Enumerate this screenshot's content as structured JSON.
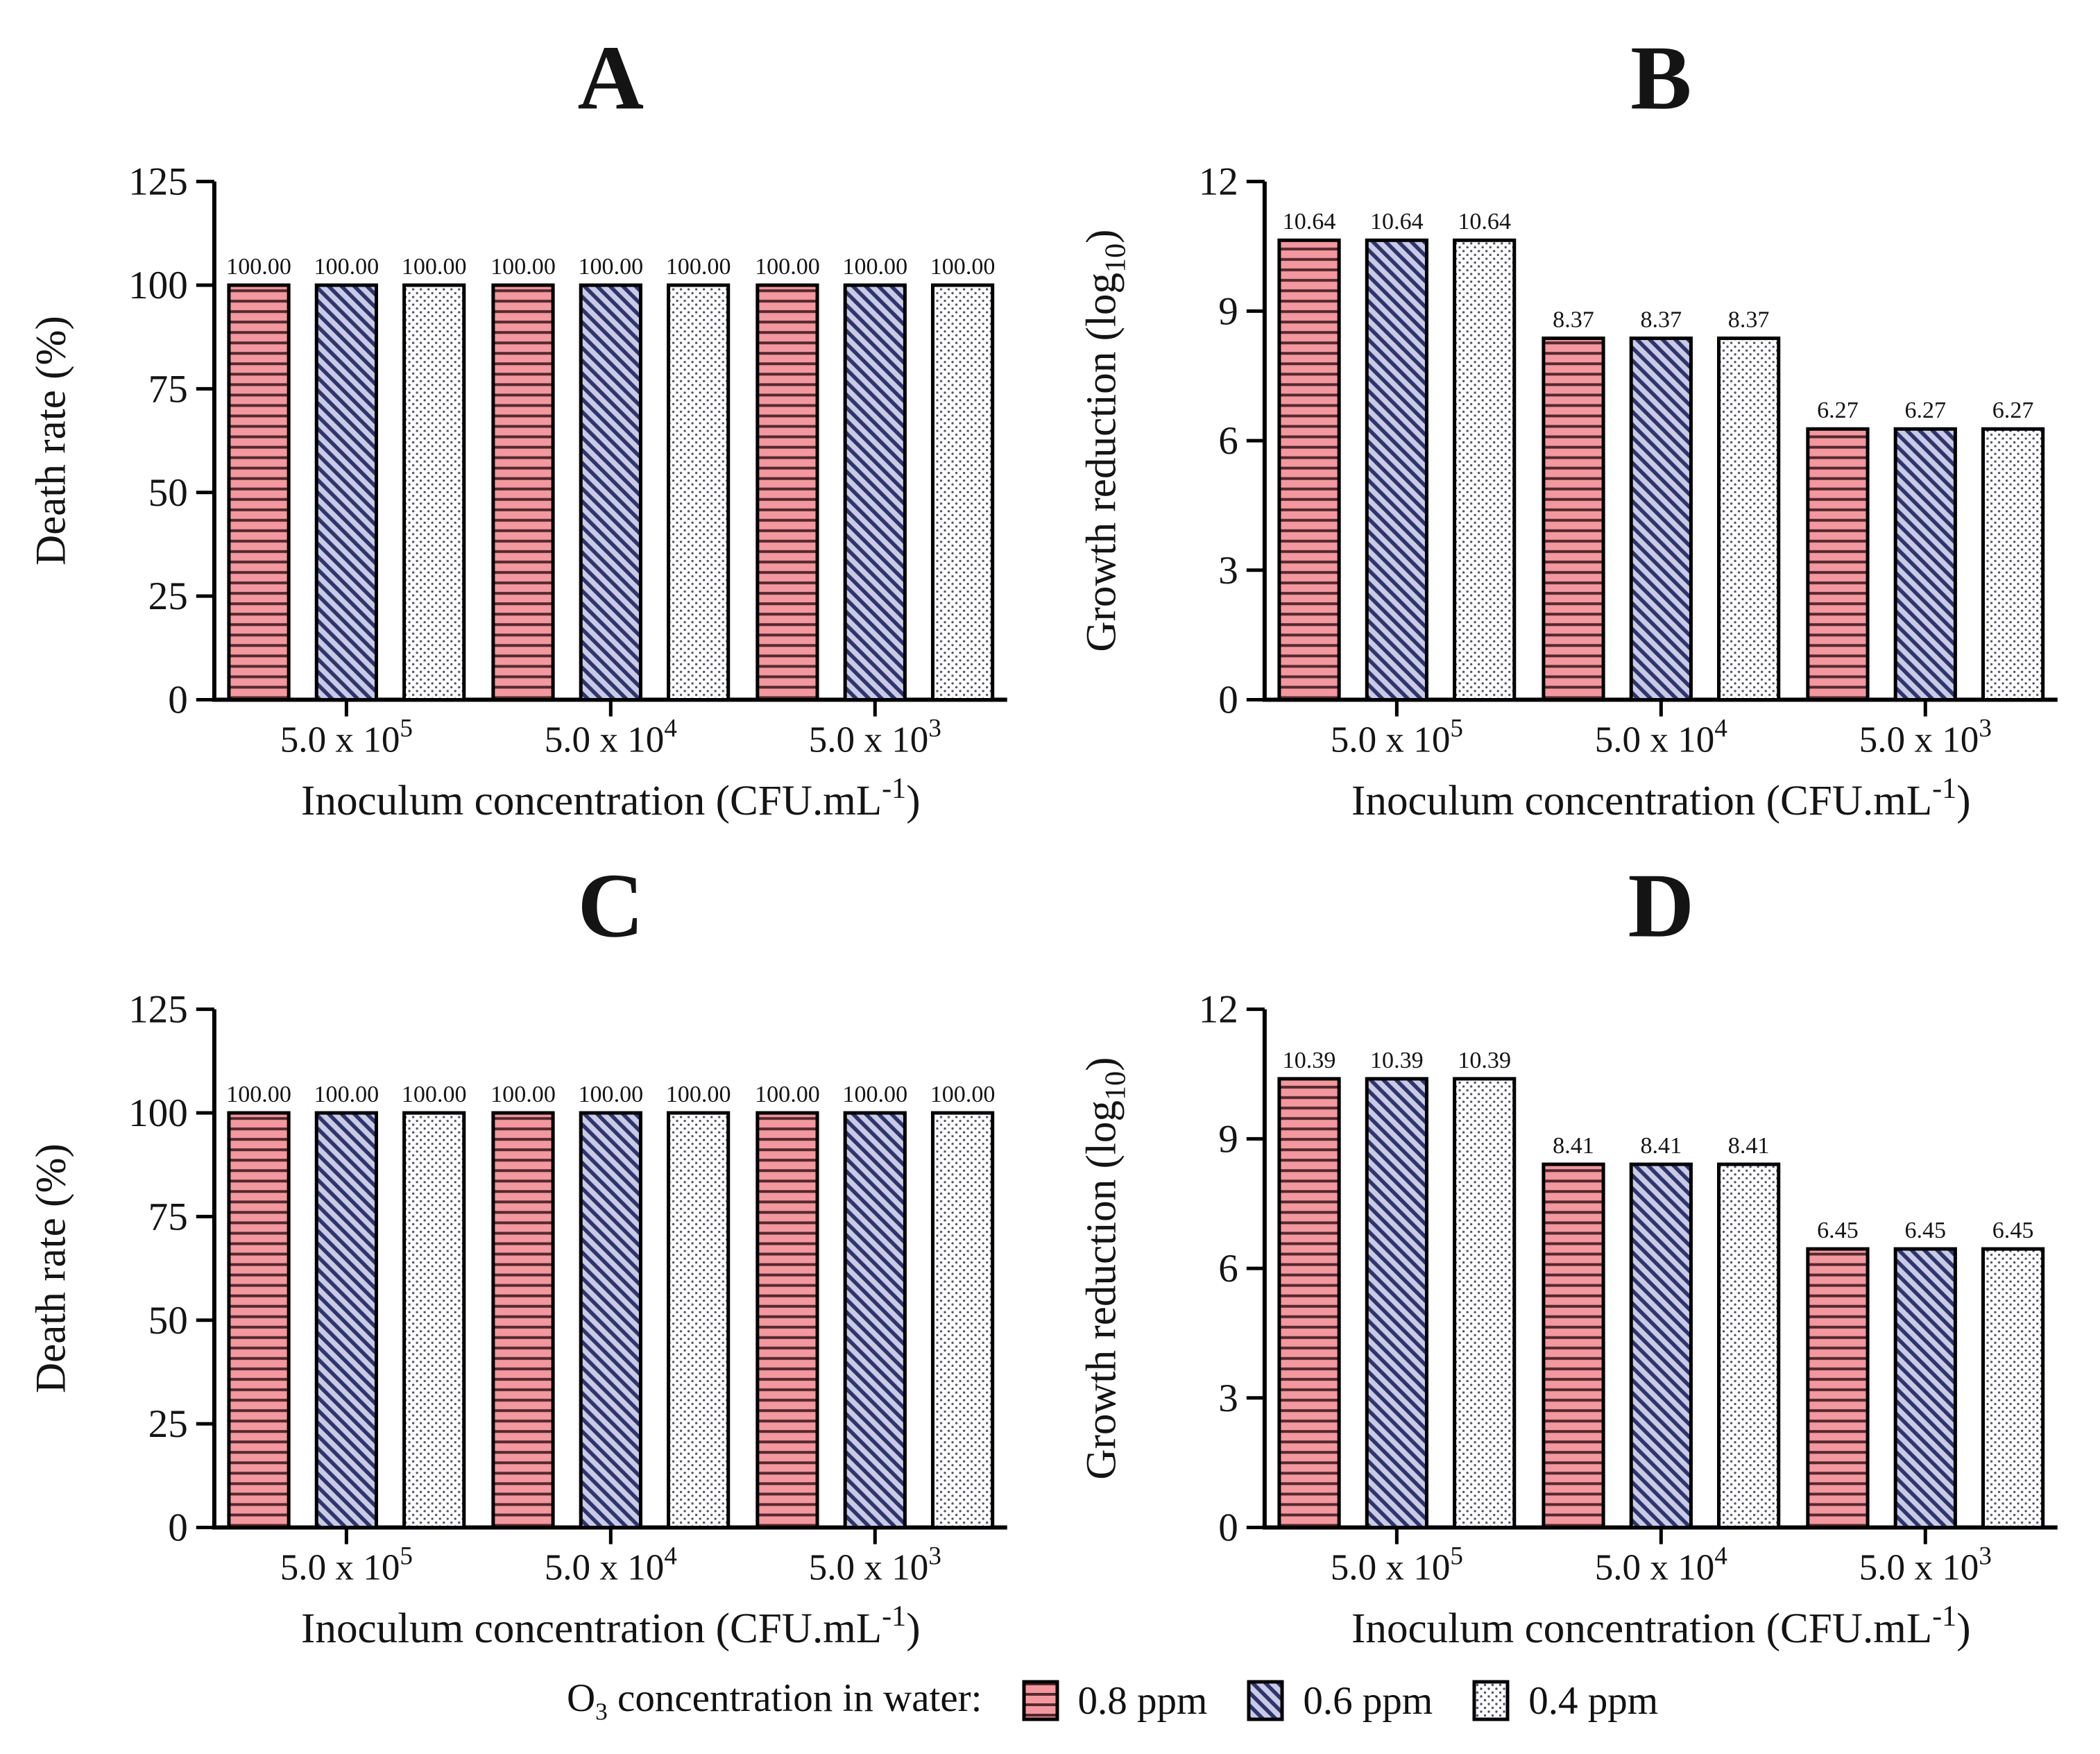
{
  "legend": {
    "title_pre": "O",
    "title_sub": "3",
    "title_post": " concentration in water:",
    "entries": [
      {
        "label": "0.8 ppm",
        "pattern_id": "pat-hlines",
        "fill": "#f2989e",
        "stripe": "#54282e"
      },
      {
        "label": "0.6 ppm",
        "pattern_id": "pat-diag",
        "fill": "#c8cae6",
        "stripe": "#2f356b"
      },
      {
        "label": "0.4 ppm",
        "pattern_id": "pat-dots",
        "fill": "#ffffff",
        "stripe": "#50506a"
      }
    ]
  },
  "colors": {
    "bar_stroke": "#000000",
    "axis": "#000000",
    "text": "#141414",
    "background": "#ffffff"
  },
  "chart_data": [
    {
      "id": "A",
      "type": "bar",
      "title": "A",
      "ylabel": {
        "pre": "Death rate (%)",
        "sub": "",
        "post": ""
      },
      "xlabel": {
        "pre": "Inoculum concentration (CFU.mL",
        "sup": "-1",
        "post": ")"
      },
      "ylim": [
        0,
        125
      ],
      "yticks": [
        0,
        25,
        50,
        75,
        100,
        125
      ],
      "grid": false,
      "categories": [
        {
          "base": "5.0 x 10",
          "exp": "5"
        },
        {
          "base": "5.0 x 10",
          "exp": "4"
        },
        {
          "base": "5.0 x 10",
          "exp": "3"
        }
      ],
      "series": [
        {
          "name": "0.8 ppm",
          "values": [
            100.0,
            100.0,
            100.0
          ],
          "labels": [
            "100.00",
            "100.00",
            "100.00"
          ]
        },
        {
          "name": "0.6 ppm",
          "values": [
            100.0,
            100.0,
            100.0
          ],
          "labels": [
            "100.00",
            "100.00",
            "100.00"
          ]
        },
        {
          "name": "0.4 ppm",
          "values": [
            100.0,
            100.0,
            100.0
          ],
          "labels": [
            "100.00",
            "100.00",
            "100.00"
          ]
        }
      ]
    },
    {
      "id": "B",
      "type": "bar",
      "title": "B",
      "ylabel": {
        "pre": "Growth reduction (log",
        "sub": "10",
        "post": ")"
      },
      "xlabel": {
        "pre": "Inoculum concentration (CFU.mL",
        "sup": "-1",
        "post": ")"
      },
      "ylim": [
        0,
        12
      ],
      "yticks": [
        0,
        3,
        6,
        9,
        12
      ],
      "grid": false,
      "categories": [
        {
          "base": "5.0 x 10",
          "exp": "5"
        },
        {
          "base": "5.0 x 10",
          "exp": "4"
        },
        {
          "base": "5.0 x 10",
          "exp": "3"
        }
      ],
      "series": [
        {
          "name": "0.8 ppm",
          "values": [
            10.64,
            8.37,
            6.27
          ],
          "labels": [
            "10.64",
            "8.37",
            "6.27"
          ]
        },
        {
          "name": "0.6 ppm",
          "values": [
            10.64,
            8.37,
            6.27
          ],
          "labels": [
            "10.64",
            "8.37",
            "6.27"
          ]
        },
        {
          "name": "0.4 ppm",
          "values": [
            10.64,
            8.37,
            6.27
          ],
          "labels": [
            "10.64",
            "8.37",
            "6.27"
          ]
        }
      ]
    },
    {
      "id": "C",
      "type": "bar",
      "title": "C",
      "ylabel": {
        "pre": "Death rate (%)",
        "sub": "",
        "post": ""
      },
      "xlabel": {
        "pre": "Inoculum concentration (CFU.mL",
        "sup": "-1",
        "post": ")"
      },
      "ylim": [
        0,
        125
      ],
      "yticks": [
        0,
        25,
        50,
        75,
        100,
        125
      ],
      "grid": false,
      "categories": [
        {
          "base": "5.0 x 10",
          "exp": "5"
        },
        {
          "base": "5.0 x 10",
          "exp": "4"
        },
        {
          "base": "5.0 x 10",
          "exp": "3"
        }
      ],
      "series": [
        {
          "name": "0.8 ppm",
          "values": [
            100.0,
            100.0,
            100.0
          ],
          "labels": [
            "100.00",
            "100.00",
            "100.00"
          ]
        },
        {
          "name": "0.6 ppm",
          "values": [
            100.0,
            100.0,
            100.0
          ],
          "labels": [
            "100.00",
            "100.00",
            "100.00"
          ]
        },
        {
          "name": "0.4 ppm",
          "values": [
            100.0,
            100.0,
            100.0
          ],
          "labels": [
            "100.00",
            "100.00",
            "100.00"
          ]
        }
      ]
    },
    {
      "id": "D",
      "type": "bar",
      "title": "D",
      "ylabel": {
        "pre": "Growth reduction (log",
        "sub": "10",
        "post": ")"
      },
      "xlabel": {
        "pre": "Inoculum concentration (CFU.mL",
        "sup": "-1",
        "post": ")"
      },
      "ylim": [
        0,
        12
      ],
      "yticks": [
        0,
        3,
        6,
        9,
        12
      ],
      "grid": false,
      "categories": [
        {
          "base": "5.0 x 10",
          "exp": "5"
        },
        {
          "base": "5.0 x 10",
          "exp": "4"
        },
        {
          "base": "5.0 x 10",
          "exp": "3"
        }
      ],
      "series": [
        {
          "name": "0.8 ppm",
          "values": [
            10.39,
            8.41,
            6.45
          ],
          "labels": [
            "10.39",
            "8.41",
            "6.45"
          ]
        },
        {
          "name": "0.6 ppm",
          "values": [
            10.39,
            8.41,
            6.45
          ],
          "labels": [
            "10.39",
            "8.41",
            "6.45"
          ]
        },
        {
          "name": "0.4 ppm",
          "values": [
            10.39,
            8.41,
            6.45
          ],
          "labels": [
            "10.39",
            "8.41",
            "6.45"
          ]
        }
      ]
    }
  ]
}
